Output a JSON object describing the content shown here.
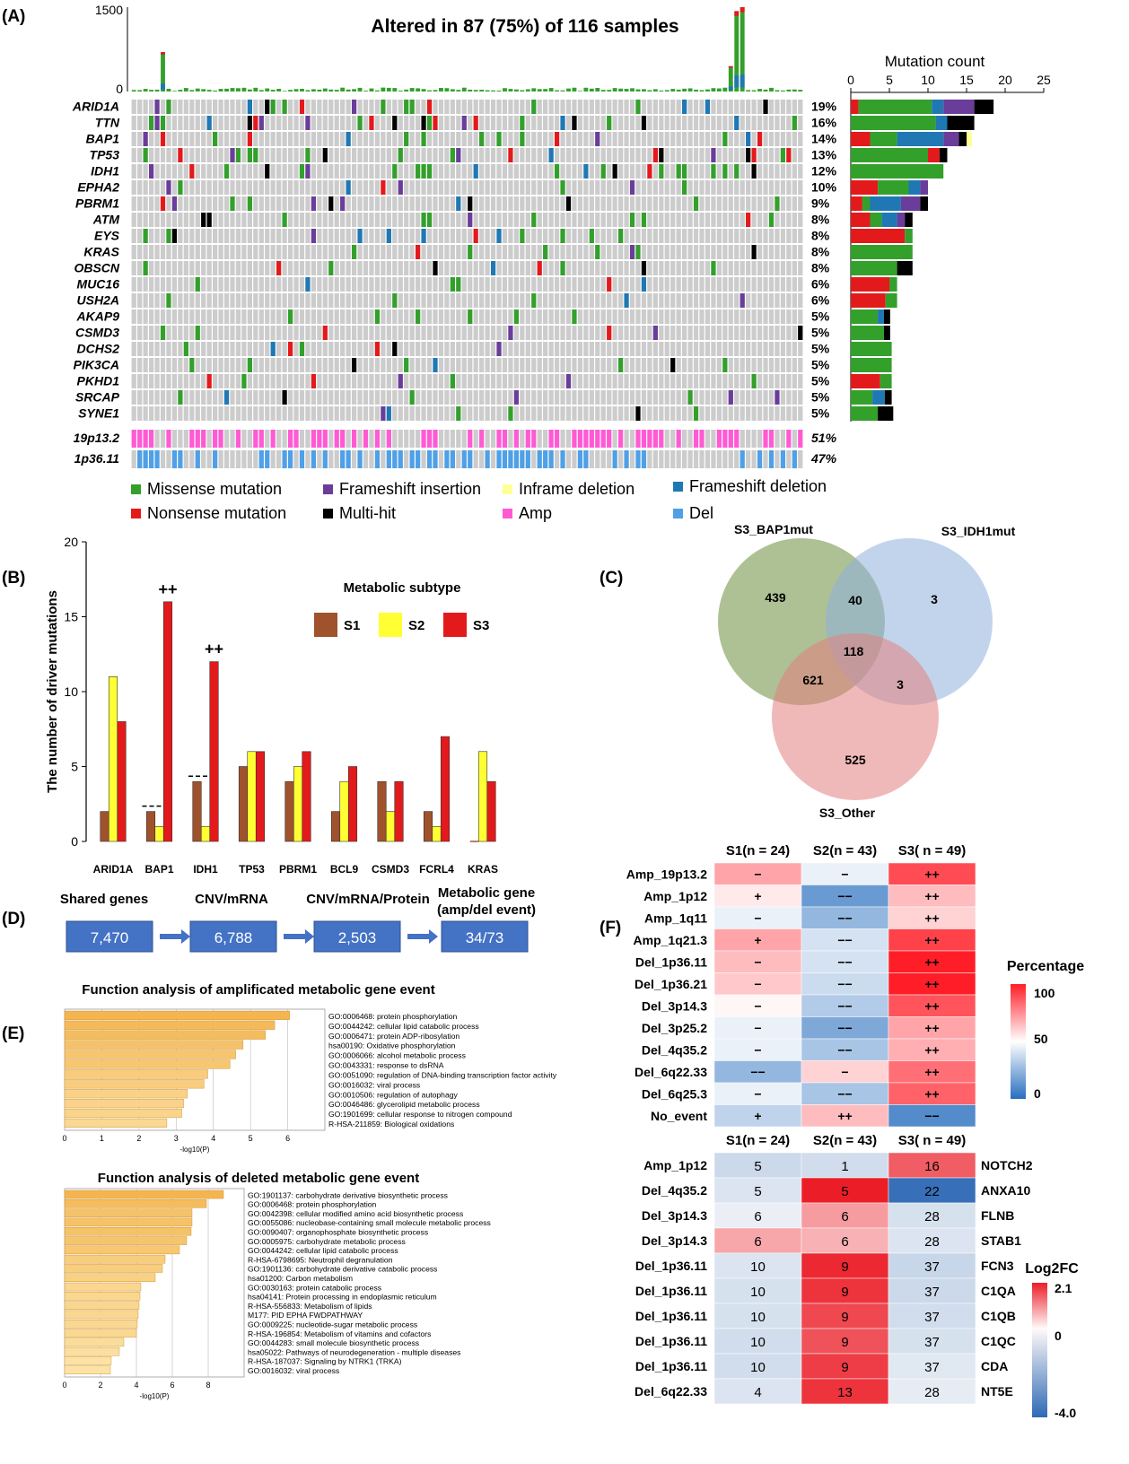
{
  "panel_labels": [
    "(A)",
    "(B)",
    "(C)",
    "(D)",
    "(E)",
    "(F)"
  ],
  "chart_data": [
    {
      "panel": "A",
      "type": "heatmap",
      "title": "Altered in 87 (75%) of 116 samples",
      "tmb_axis": {
        "ylim": [
          0,
          1500
        ],
        "ticks": [
          "1500",
          "0"
        ]
      },
      "tmb_peaks": [
        {
          "sample": 5,
          "value": 700
        },
        {
          "sample": 104,
          "value": 1430
        },
        {
          "sample": 105,
          "value": 1500
        },
        {
          "sample": 103,
          "value": 450
        }
      ],
      "genes": [
        "ARID1A",
        "TTN",
        "BAP1",
        "TP53",
        "IDH1",
        "EPHA2",
        "PBRM1",
        "ATM",
        "EYS",
        "KRAS",
        "OBSCN",
        "MUC16",
        "USH2A",
        "AKAP9",
        "CSMD3",
        "DCHS2",
        "PIK3CA",
        "PKHD1",
        "SRCAP",
        "SYNE1"
      ],
      "gene_percent": [
        "19%",
        "16%",
        "14%",
        "13%",
        "12%",
        "10%",
        "9%",
        "8%",
        "8%",
        "8%",
        "8%",
        "6%",
        "6%",
        "5%",
        "5%",
        "5%",
        "5%",
        "5%",
        "5%",
        "5%"
      ],
      "cnv_events": [
        "19p13.2",
        "1p36.11"
      ],
      "cnv_percent": [
        "51%",
        "47%"
      ],
      "n_samples": 116,
      "mutation_count_axis": {
        "label": "Mutation count",
        "ticks": [
          "0",
          "5",
          "10",
          "15",
          "20",
          "25"
        ],
        "xlim": [
          0,
          25
        ]
      },
      "mutation_count_bars": [
        [
          9.5,
          1,
          1.5,
          4,
          2.5
        ],
        [
          11,
          0,
          1.5,
          0,
          3.5
        ],
        [
          3.5,
          2.5,
          6,
          2,
          1
        ],
        [
          10,
          1.5,
          0,
          0,
          1
        ],
        [
          12,
          0,
          0,
          0,
          0
        ],
        [
          4,
          3.5,
          1.5,
          1,
          0
        ],
        [
          1,
          1.5,
          4,
          2.5,
          1
        ],
        [
          1.5,
          2.5,
          2,
          1,
          1
        ],
        [
          1,
          7,
          0,
          0,
          0
        ],
        [
          8,
          0,
          0,
          0,
          0
        ],
        [
          6,
          0,
          0,
          0,
          2
        ],
        [
          1,
          5,
          0,
          0,
          0
        ],
        [
          1.5,
          4.5,
          0,
          0,
          0
        ],
        [
          3.5,
          0,
          0.8,
          0,
          0.8
        ],
        [
          4.3,
          0,
          0,
          0,
          0.8
        ],
        [
          5.3,
          0,
          0,
          0,
          0
        ],
        [
          5.3,
          0,
          0,
          0,
          0
        ],
        [
          1.5,
          3.8,
          0,
          0,
          0
        ],
        [
          2.8,
          0,
          1.6,
          0,
          0.9
        ],
        [
          3.5,
          0,
          0,
          0,
          2
        ]
      ],
      "legend": [
        "Missense mutation",
        "Frameshift insertion",
        "Inframe deletion",
        "Frameshift deletion",
        "Nonsense mutation",
        "Multi-hit",
        "Amp",
        "Del"
      ],
      "colors": {
        "missense": "#33a02c",
        "nonsense": "#e31a1c",
        "frameshift_ins": "#6a3d9a",
        "inframe_del": "#ffff99",
        "frameshift_del": "#1f78b4",
        "multi_hit": "#000000",
        "amp": "#ff5ad4",
        "del": "#4fa0e6",
        "grid": "#cccccc"
      }
    },
    {
      "panel": "B",
      "type": "bar",
      "categories": [
        "ARID1A",
        "BAP1",
        "IDH1",
        "TP53",
        "PBRM1",
        "BCL9",
        "CSMD3",
        "FCRL4",
        "KRAS"
      ],
      "series": [
        {
          "name": "S1",
          "color": "#a0522d",
          "values": [
            2,
            2,
            4,
            5,
            4,
            2,
            4,
            2,
            0
          ]
        },
        {
          "name": "S2",
          "color": "#ffff33",
          "values": [
            11,
            1,
            1,
            6,
            5,
            4,
            2,
            1,
            6
          ]
        },
        {
          "name": "S3",
          "color": "#e31a1c",
          "values": [
            8,
            16,
            12,
            6,
            6,
            5,
            4,
            7,
            4
          ]
        }
      ],
      "ylabel": "The number of driver mutations",
      "ylim": [
        0,
        20
      ],
      "yticks": [
        "0",
        "5",
        "10",
        "15",
        "20"
      ],
      "legend_title": "Metabolic subtype",
      "annotations": [
        {
          "category": "BAP1",
          "text": "++"
        },
        {
          "category": "IDH1",
          "text": "++"
        }
      ]
    },
    {
      "panel": "C",
      "type": "venn",
      "sets": [
        {
          "name": "S3_BAP1mut",
          "color": "#6b8e3d"
        },
        {
          "name": "S3_IDH1mut",
          "color": "#8fb0dc"
        },
        {
          "name": "S3_Other",
          "color": "#e48080"
        }
      ],
      "regions": {
        "bap1_only": "439",
        "idh1_only": "3",
        "other_only": "525",
        "bap1_idh1": "40",
        "bap1_other": "621",
        "idh1_other": "3",
        "all": "118"
      }
    },
    {
      "panel": "D",
      "type": "flow",
      "steps": [
        {
          "label": "Shared genes",
          "value": "7,470"
        },
        {
          "label": "CNV/mRNA",
          "value": "6,788"
        },
        {
          "label": "CNV/mRNA/Protein",
          "value": "2,503"
        },
        {
          "label": "Metabolic gene (amp/del event)",
          "value": "34/73"
        }
      ]
    },
    {
      "panel": "E1",
      "type": "bar",
      "orientation": "horizontal",
      "title": "Function analysis of amplificated metabolic gene event",
      "xlabel": "-log10(P)",
      "xlim": [
        0,
        7
      ],
      "xticks": [
        "0",
        "1",
        "2",
        "3",
        "4",
        "5",
        "6"
      ],
      "terms": [
        {
          "label": "GO:0006468: protein phosphorylation",
          "value": 6.05
        },
        {
          "label": "GO:0044242: cellular lipid catabolic process",
          "value": 5.65
        },
        {
          "label": "GO:0006471: protein ADP-ribosylation",
          "value": 5.4
        },
        {
          "label": "hsa00190: Oxidative phosphorylation",
          "value": 4.8
        },
        {
          "label": "GO:0006066: alcohol metabolic process",
          "value": 4.6
        },
        {
          "label": "GO:0043331: response to dsRNA",
          "value": 4.45
        },
        {
          "label": "GO:0051090: regulation of DNA-binding transcription factor activity",
          "value": 3.85
        },
        {
          "label": "GO:0016032: viral process",
          "value": 3.75
        },
        {
          "label": "GO:0010506: regulation of autophagy",
          "value": 3.3
        },
        {
          "label": "GO:0046486: glycerolipid metabolic process",
          "value": 3.2
        },
        {
          "label": "GO:1901699: cellular response to nitrogen compound",
          "value": 3.15
        },
        {
          "label": "R-HSA-211859: Biological oxidations",
          "value": 2.75
        }
      ]
    },
    {
      "panel": "E2",
      "type": "bar",
      "orientation": "horizontal",
      "title": "Function analysis of deleted metabolic gene event",
      "xlabel": "-log10(P)",
      "xlim": [
        0,
        10
      ],
      "xticks": [
        "0",
        "2",
        "4",
        "6",
        "8"
      ],
      "terms": [
        {
          "label": "GO:1901137: carbohydrate derivative biosynthetic process",
          "value": 8.85
        },
        {
          "label": "GO:0006468: protein phosphorylation",
          "value": 7.9
        },
        {
          "label": "GO:0042398: cellular modified amino acid biosynthetic process",
          "value": 7.1
        },
        {
          "label": "GO:0055086: nucleobase-containing small molecule metabolic process",
          "value": 7.1
        },
        {
          "label": "GO:0090407: organophosphate biosynthetic process",
          "value": 7.05
        },
        {
          "label": "GO:0005975: carbohydrate metabolic process",
          "value": 6.8
        },
        {
          "label": "GO:0044242: cellular lipid catabolic process",
          "value": 6.4
        },
        {
          "label": "R-HSA-6798695: Neutrophil degranulation",
          "value": 5.6
        },
        {
          "label": "GO:1901136: carbohydrate derivative catabolic process",
          "value": 5.45
        },
        {
          "label": "hsa01200: Carbon metabolism",
          "value": 5.05
        },
        {
          "label": "GO:0030163: protein catabolic process",
          "value": 4.25
        },
        {
          "label": "hsa04141: Protein processing in endoplasmic reticulum",
          "value": 4.2
        },
        {
          "label": "R-HSA-556833: Metabolism of lipids",
          "value": 4.15
        },
        {
          "label": "M177: PID EPHA FWDPATHWAY",
          "value": 4.1
        },
        {
          "label": "GO:0009225: nucleotide-sugar metabolic process",
          "value": 4.05
        },
        {
          "label": "R-HSA-196854: Metabolism of vitamins and cofactors",
          "value": 4.0
        },
        {
          "label": "GO:0044283: small molecule biosynthetic process",
          "value": 3.3
        },
        {
          "label": "hsa05022: Pathways of neurodegeneration - multiple diseases",
          "value": 3.05
        },
        {
          "label": "R-HSA-187037: Signaling by NTRK1 (TRKA)",
          "value": 2.6
        },
        {
          "label": "GO:0016032: viral process",
          "value": 2.55
        }
      ]
    },
    {
      "panel": "F1",
      "type": "heatmap",
      "columns": [
        "S1(n = 24)",
        "S2(n = 43)",
        "S3( n = 49)"
      ],
      "rows": [
        "Amp_19p13.2",
        "Amp_1p12",
        "Amp_1q11",
        "Amp_1q21.3",
        "Del_1p36.11",
        "Del_1p36.21",
        "Del_3p14.3",
        "Del_3p25.2",
        "Del_4q35.2",
        "Del_6q22.33",
        "Del_6q25.3",
        "No_event"
      ],
      "values": [
        [
          70,
          45,
          90
        ],
        [
          55,
          15,
          65
        ],
        [
          45,
          25,
          60
        ],
        [
          70,
          40,
          92
        ],
        [
          65,
          40,
          100
        ],
        [
          62,
          38,
          100
        ],
        [
          52,
          32,
          88
        ],
        [
          45,
          20,
          70
        ],
        [
          45,
          30,
          68
        ],
        [
          25,
          60,
          82
        ],
        [
          45,
          30,
          85
        ],
        [
          35,
          65,
          10
        ]
      ],
      "labels": [
        [
          "−",
          "−",
          "++"
        ],
        [
          "+",
          "−−",
          "++"
        ],
        [
          "−",
          "−−",
          "++"
        ],
        [
          "+",
          "−−",
          "++"
        ],
        [
          "−",
          "−−",
          "++"
        ],
        [
          "−",
          "−−",
          "++"
        ],
        [
          "−",
          "−−",
          "++"
        ],
        [
          "−",
          "−−",
          "++"
        ],
        [
          "−",
          "−−",
          "++"
        ],
        [
          "−−",
          "−",
          "++"
        ],
        [
          "−",
          "−−",
          "++"
        ],
        [
          "+",
          "++",
          "−−"
        ]
      ],
      "colorbar": {
        "title": "Percentage",
        "ticks": [
          "100",
          "50",
          "0"
        ],
        "range": [
          0,
          100
        ]
      }
    },
    {
      "panel": "F2",
      "type": "heatmap",
      "columns": [
        "S1(n = 24)",
        "S2(n = 43)",
        "S3( n = 49)"
      ],
      "rows": [
        "Amp_1p12",
        "Del_4q35.2",
        "Del_3p14.3",
        "Del_3p14.3",
        "Del_1p36.11",
        "Del_1p36.11",
        "Del_1p36.11",
        "Del_1p36.11",
        "Del_1p36.11",
        "Del_6q22.33"
      ],
      "genes": [
        "NOTCH2",
        "ANXA10",
        "FLNB",
        "STAB1",
        "FCN3",
        "C1QA",
        "C1QB",
        "C1QC",
        "CDA",
        "NT5E"
      ],
      "counts": [
        [
          "5",
          "1",
          "16"
        ],
        [
          "5",
          "5",
          "22"
        ],
        [
          "6",
          "6",
          "28"
        ],
        [
          "6",
          "6",
          "28"
        ],
        [
          "10",
          "9",
          "37"
        ],
        [
          "10",
          "9",
          "37"
        ],
        [
          "10",
          "9",
          "37"
        ],
        [
          "10",
          "9",
          "37"
        ],
        [
          "10",
          "9",
          "37"
        ],
        [
          "4",
          "13",
          "28"
        ]
      ],
      "log2fc": [
        [
          -0.9,
          -0.8,
          1.5
        ],
        [
          -0.6,
          2.1,
          -3.8
        ],
        [
          -0.3,
          0.9,
          -0.7
        ],
        [
          0.8,
          0.7,
          -0.6
        ],
        [
          -0.6,
          2.0,
          -1.0
        ],
        [
          -0.7,
          1.9,
          -0.9
        ],
        [
          -0.7,
          1.7,
          -0.8
        ],
        [
          -0.8,
          1.6,
          -0.7
        ],
        [
          -0.8,
          1.8,
          -0.5
        ],
        [
          -0.6,
          1.9,
          -0.4
        ]
      ],
      "colorbar": {
        "title": "Log2FC",
        "ticks": [
          "2.1",
          "0",
          "-4.0"
        ],
        "range": [
          -4.0,
          2.1
        ]
      }
    }
  ]
}
